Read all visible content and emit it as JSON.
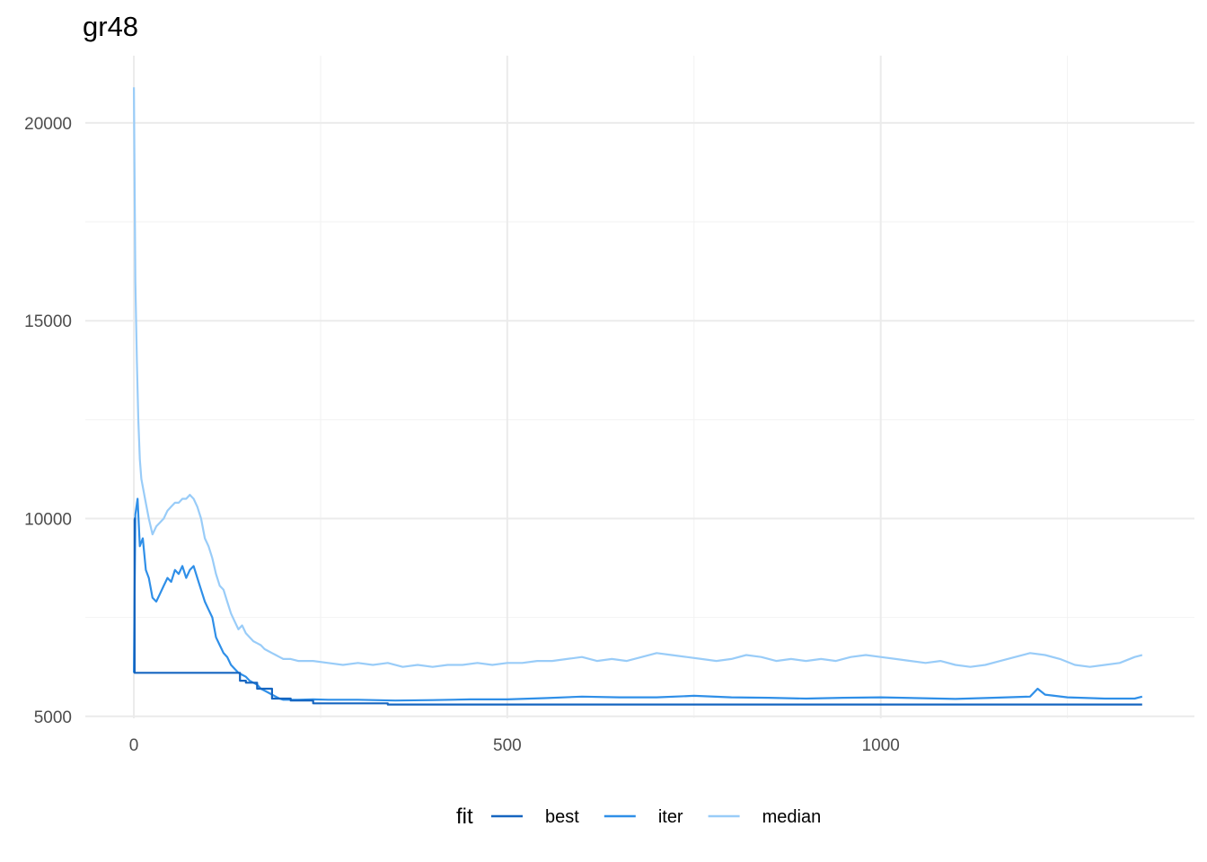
{
  "chart_data": {
    "type": "line",
    "title": "gr48",
    "xlabel": "",
    "ylabel": "",
    "xlim": [
      -65,
      1420
    ],
    "ylim": [
      4950,
      21700
    ],
    "x_ticks": [
      0,
      500,
      1000
    ],
    "x_tick_labels": [
      "0",
      "500",
      "1000"
    ],
    "x_minor_ticks": [
      250,
      750,
      1250
    ],
    "y_ticks": [
      5000,
      10000,
      15000,
      20000
    ],
    "y_tick_labels": [
      "5000",
      "10000",
      "15000",
      "20000"
    ],
    "y_minor_ticks": [
      7500,
      12500,
      17500
    ],
    "grid": true,
    "legend": {
      "title": "fit",
      "position": "bottom"
    },
    "series": [
      {
        "name": "best",
        "color": "#1565c0",
        "x": [
          0,
          1,
          1,
          142,
          142,
          150,
          150,
          165,
          165,
          185,
          185,
          210,
          210,
          240,
          240,
          340,
          340,
          1350
        ],
        "y": [
          10000,
          10000,
          6100,
          6100,
          5900,
          5900,
          5850,
          5850,
          5700,
          5700,
          5450,
          5450,
          5400,
          5400,
          5330,
          5330,
          5300,
          5300
        ]
      },
      {
        "name": "iter",
        "color": "#2f8fe8",
        "x": [
          0,
          2,
          5,
          8,
          12,
          16,
          20,
          25,
          30,
          35,
          40,
          45,
          50,
          55,
          60,
          65,
          70,
          75,
          80,
          85,
          90,
          95,
          100,
          105,
          110,
          115,
          120,
          125,
          130,
          135,
          140,
          145,
          150,
          155,
          160,
          165,
          170,
          175,
          180,
          185,
          190,
          195,
          200,
          210,
          220,
          240,
          260,
          300,
          350,
          400,
          450,
          500,
          550,
          600,
          650,
          700,
          750,
          800,
          850,
          900,
          950,
          1000,
          1050,
          1100,
          1150,
          1200,
          1210,
          1220,
          1250,
          1300,
          1340,
          1350
        ],
        "y": [
          6100,
          10100,
          10500,
          9300,
          9500,
          8700,
          8500,
          8000,
          7900,
          8100,
          8300,
          8500,
          8400,
          8700,
          8600,
          8800,
          8500,
          8700,
          8800,
          8500,
          8200,
          7900,
          7700,
          7500,
          7000,
          6800,
          6600,
          6500,
          6300,
          6200,
          6100,
          6050,
          6000,
          5900,
          5850,
          5800,
          5700,
          5650,
          5600,
          5550,
          5500,
          5450,
          5420,
          5420,
          5420,
          5430,
          5420,
          5420,
          5400,
          5410,
          5430,
          5430,
          5460,
          5500,
          5480,
          5480,
          5520,
          5480,
          5470,
          5450,
          5470,
          5480,
          5460,
          5440,
          5470,
          5500,
          5700,
          5550,
          5480,
          5450,
          5450,
          5500
        ]
      },
      {
        "name": "median",
        "color": "#99ccf8",
        "x": [
          0,
          2,
          4,
          6,
          8,
          10,
          15,
          20,
          25,
          30,
          35,
          40,
          45,
          50,
          55,
          60,
          65,
          70,
          75,
          80,
          85,
          90,
          95,
          100,
          105,
          110,
          115,
          120,
          125,
          130,
          135,
          140,
          145,
          150,
          155,
          160,
          165,
          170,
          175,
          180,
          185,
          190,
          195,
          200,
          210,
          220,
          240,
          260,
          280,
          300,
          320,
          340,
          360,
          380,
          400,
          420,
          440,
          460,
          480,
          500,
          520,
          540,
          560,
          580,
          600,
          620,
          640,
          660,
          680,
          700,
          720,
          740,
          760,
          780,
          800,
          820,
          840,
          860,
          880,
          900,
          920,
          940,
          960,
          980,
          1000,
          1020,
          1040,
          1060,
          1080,
          1100,
          1120,
          1140,
          1160,
          1180,
          1200,
          1220,
          1240,
          1260,
          1280,
          1300,
          1320,
          1340,
          1350
        ],
        "y": [
          20900,
          16000,
          14000,
          12500,
          11500,
          11000,
          10500,
          10000,
          9600,
          9800,
          9900,
          10000,
          10200,
          10300,
          10400,
          10400,
          10500,
          10500,
          10600,
          10500,
          10300,
          10000,
          9500,
          9300,
          9000,
          8600,
          8300,
          8200,
          7900,
          7600,
          7400,
          7200,
          7300,
          7100,
          7000,
          6900,
          6850,
          6800,
          6700,
          6650,
          6600,
          6550,
          6500,
          6450,
          6450,
          6400,
          6400,
          6350,
          6300,
          6350,
          6300,
          6350,
          6250,
          6300,
          6250,
          6300,
          6300,
          6350,
          6300,
          6350,
          6350,
          6400,
          6400,
          6450,
          6500,
          6400,
          6450,
          6400,
          6500,
          6600,
          6550,
          6500,
          6450,
          6400,
          6450,
          6550,
          6500,
          6400,
          6450,
          6400,
          6450,
          6400,
          6500,
          6550,
          6500,
          6450,
          6400,
          6350,
          6400,
          6300,
          6250,
          6300,
          6400,
          6500,
          6600,
          6550,
          6450,
          6300,
          6250,
          6300,
          6350,
          6500,
          6550
        ]
      }
    ]
  }
}
